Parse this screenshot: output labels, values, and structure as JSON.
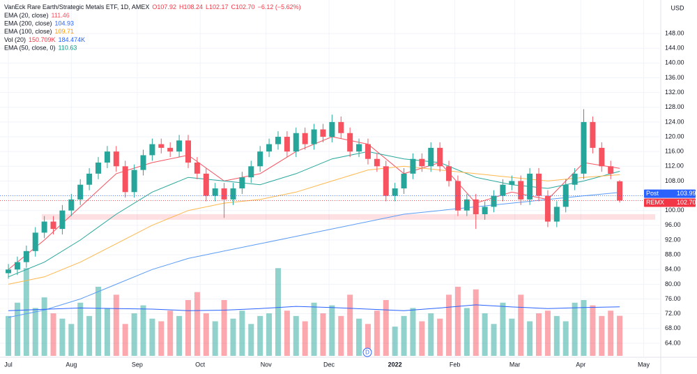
{
  "chart_data": {
    "type": "candlestick",
    "title": "VanEck Rare Earth/Strategic Metals ETF, 1D, AMEX",
    "ohlc_header": [
      {
        "text": "O107.92",
        "color": "#f23645"
      },
      {
        "text": "H108.24",
        "color": "#f23645"
      },
      {
        "text": "L102.17",
        "color": "#f23645"
      },
      {
        "text": "C102.70",
        "color": "#f23645"
      },
      {
        "text": "−6.12 (−5.62%)",
        "color": "#f23645"
      }
    ],
    "legend": [
      {
        "label": "EMA (20, close)",
        "values": [
          {
            "text": "111.46",
            "color": "#f7525f"
          }
        ]
      },
      {
        "label": "EMA (200, close)",
        "values": [
          {
            "text": "104.93",
            "color": "#2962ff"
          }
        ]
      },
      {
        "label": "EMA (100, close)",
        "values": [
          {
            "text": "109.71",
            "color": "#ff9800"
          }
        ]
      },
      {
        "label": "Vol (20)",
        "values": [
          {
            "text": "150.709K",
            "color": "#f23645"
          },
          {
            "text": "184.474K",
            "color": "#2962ff"
          }
        ]
      },
      {
        "label": "EMA (50, close, 0)",
        "values": [
          {
            "text": "110.63",
            "color": "#089981"
          }
        ]
      }
    ],
    "currency": "USD",
    "x": [
      0,
      3,
      6,
      9,
      12,
      15,
      18,
      21,
      24,
      27,
      30,
      33,
      36,
      39,
      42,
      45,
      48,
      51,
      54,
      57,
      60,
      63,
      66,
      69,
      72,
      75,
      78,
      81,
      84,
      87,
      90,
      93,
      96,
      99,
      102,
      105,
      108,
      111,
      114,
      117,
      120,
      123,
      126,
      129,
      132,
      135,
      138,
      141,
      144,
      147,
      150,
      153,
      156,
      159,
      162,
      165,
      168,
      171,
      174,
      177,
      180,
      183,
      186,
      189,
      192,
      195,
      198,
      201,
      204
    ],
    "open": [
      83,
      84,
      86,
      89,
      94,
      97,
      95,
      100,
      103,
      107,
      110,
      113,
      116,
      112,
      105,
      111,
      115,
      118,
      117,
      116,
      119,
      113,
      110,
      104,
      106,
      103,
      106,
      109,
      112,
      116,
      118,
      120,
      116,
      121,
      118,
      122,
      120,
      124,
      121,
      116,
      118,
      114,
      112,
      104,
      106,
      110,
      114,
      112,
      117,
      112,
      108,
      100,
      103,
      99,
      101,
      104,
      107,
      108,
      103,
      110,
      104,
      97,
      101,
      107,
      110,
      124,
      117,
      112,
      107.92
    ],
    "high": [
      85.5,
      87.5,
      90.5,
      95.5,
      98.5,
      98.5,
      101.5,
      104.5,
      108.5,
      111.5,
      114.5,
      117.5,
      117.5,
      113.5,
      112.5,
      116.5,
      119.5,
      119.5,
      118.5,
      120.5,
      120.5,
      114.5,
      111.5,
      107.5,
      107.5,
      107.5,
      110.5,
      113.5,
      117.5,
      119.5,
      121.5,
      121.5,
      122.5,
      122.5,
      123.5,
      123.5,
      126,
      125.5,
      122.5,
      119.5,
      119.5,
      115.5,
      113.5,
      107.5,
      111.5,
      115.5,
      115.5,
      118.5,
      118.5,
      113.5,
      109.5,
      104.5,
      104.5,
      102.5,
      105.5,
      108.5,
      109.5,
      109.5,
      111.5,
      111.5,
      105.5,
      102.5,
      108.5,
      111.5,
      127.5,
      125.5,
      118.5,
      113.5,
      108.24
    ],
    "low": [
      81.5,
      82.5,
      84.5,
      87.5,
      92.5,
      93.5,
      93.5,
      98.5,
      101.5,
      105.5,
      108.5,
      111.5,
      110.5,
      103.5,
      103.5,
      109.5,
      113.5,
      115.5,
      114.5,
      114.5,
      111.5,
      108.5,
      102.5,
      102.5,
      98,
      101.5,
      104.5,
      107.5,
      110.5,
      114.5,
      116.5,
      114.5,
      114.5,
      116.5,
      116.5,
      118.5,
      118.5,
      119.5,
      114.5,
      114.5,
      112.5,
      110.5,
      102.5,
      102.5,
      104.5,
      108.5,
      110.5,
      110.5,
      110.5,
      106.5,
      98.5,
      98.5,
      95,
      97.5,
      99.5,
      102.5,
      105.5,
      101.5,
      101.5,
      102.5,
      95.5,
      95.5,
      99.5,
      105.5,
      108.5,
      115.5,
      110.5,
      108.5,
      102.17
    ],
    "close": [
      84,
      86,
      89,
      94,
      97,
      95,
      100,
      103,
      107,
      110,
      113,
      116,
      112,
      105,
      111,
      115,
      118,
      117,
      116,
      119,
      113,
      110,
      104,
      106,
      103,
      106,
      109,
      112,
      116,
      118,
      120,
      116,
      121,
      118,
      122,
      120,
      124,
      121,
      116,
      118,
      114,
      112,
      104,
      106,
      110,
      114,
      112,
      117,
      112,
      108,
      100,
      103,
      99,
      101,
      104,
      107,
      108,
      103,
      110,
      104,
      97,
      101,
      107,
      110,
      124,
      117,
      112,
      110,
      102.7
    ],
    "volume": [
      150,
      200,
      330,
      180,
      220,
      160,
      140,
      120,
      200,
      150,
      260,
      180,
      230,
      120,
      160,
      190,
      140,
      130,
      170,
      150,
      210,
      240,
      160,
      130,
      210,
      140,
      170,
      120,
      150,
      160,
      330,
      170,
      150,
      130,
      200,
      160,
      190,
      150,
      230,
      140,
      120,
      170,
      210,
      110,
      150,
      180,
      130,
      160,
      140,
      230,
      260,
      180,
      250,
      160,
      120,
      200,
      140,
      230,
      130,
      160,
      170,
      150,
      130,
      200,
      210,
      190,
      150,
      170,
      150.709
    ],
    "vlim": [
      0,
      420
    ],
    "up_color": "#26a69a",
    "down_color": "#f7525f",
    "lines": [
      {
        "name": "EMA (20, close)",
        "color": "#f7525f",
        "axis": "y",
        "x": [
          0,
          12,
          24,
          36,
          48,
          60,
          72,
          84,
          96,
          108,
          120,
          132,
          144,
          156,
          168,
          180,
          192,
          204
        ],
        "values": [
          84,
          92,
          101,
          110,
          113,
          115,
          108,
          110,
          116,
          120,
          118,
          110,
          113,
          102,
          105,
          103,
          113,
          111.46
        ]
      },
      {
        "name": "EMA (50, close, 0)",
        "color": "#26a69a",
        "axis": "y",
        "x": [
          0,
          12,
          24,
          36,
          48,
          60,
          72,
          84,
          96,
          108,
          120,
          132,
          144,
          156,
          168,
          180,
          192,
          204
        ],
        "values": [
          82,
          86,
          92,
          99,
          105,
          109,
          108,
          107,
          110,
          114,
          116,
          114,
          113,
          109,
          107,
          106,
          108,
          110.63
        ]
      },
      {
        "name": "EMA (100, close)",
        "color": "#ffb74d",
        "axis": "y",
        "x": [
          0,
          12,
          24,
          36,
          48,
          60,
          72,
          84,
          96,
          108,
          120,
          132,
          144,
          156,
          168,
          180,
          192,
          204
        ],
        "values": [
          80,
          82,
          86,
          91,
          96,
          100,
          102,
          103,
          105,
          108,
          111,
          112,
          111,
          110,
          109,
          108,
          109,
          109.71
        ]
      },
      {
        "name": "EMA (200, close)",
        "color": "#5b9cf6",
        "axis": "y",
        "x": [
          0,
          12,
          24,
          36,
          48,
          60,
          72,
          84,
          96,
          108,
          120,
          132,
          144,
          156,
          168,
          180,
          192,
          204
        ],
        "values": [
          71,
          73,
          76,
          80,
          84,
          87,
          89,
          91,
          93,
          95,
          97,
          99,
          100,
          101,
          102,
          103,
          104,
          104.93
        ]
      },
      {
        "name": "Vol (20)",
        "color": "#2962ff",
        "axis": "volume",
        "x": [
          0,
          12,
          24,
          36,
          48,
          60,
          72,
          84,
          96,
          108,
          120,
          132,
          144,
          156,
          168,
          180,
          192,
          204
        ],
        "values": [
          170,
          175,
          180,
          178,
          176,
          170,
          172,
          178,
          186,
          182,
          176,
          170,
          180,
          192,
          184,
          178,
          182,
          184.474
        ]
      }
    ],
    "zone": [
      97.5,
      99
    ],
    "price_labels": [
      {
        "label": "Post",
        "value": 103.99,
        "value_label": "103.99",
        "color": "#2962ff"
      },
      {
        "label": "REMX",
        "value": 102.7,
        "value_label": "102.70",
        "color": "#f23645"
      }
    ],
    "ylim": [
      60.2,
      157.1
    ],
    "yticks": [
      {
        "value": 64,
        "label": "64.00"
      },
      {
        "value": 68,
        "label": "68.00"
      },
      {
        "value": 72,
        "label": "72.00"
      },
      {
        "value": 76,
        "label": "76.00"
      },
      {
        "value": 80,
        "label": "80.00"
      },
      {
        "value": 84,
        "label": "84.00"
      },
      {
        "value": 88,
        "label": "88.00"
      },
      {
        "value": 92,
        "label": "92.00"
      },
      {
        "value": 96,
        "label": "96.00"
      },
      {
        "value": 100,
        "label": "100.00"
      },
      {
        "value": 104,
        "label": "104.00"
      },
      {
        "value": 108,
        "label": "108.00"
      },
      {
        "value": 112,
        "label": "112.00"
      },
      {
        "value": 116,
        "label": "116.00"
      },
      {
        "value": 120,
        "label": "120.00"
      },
      {
        "value": 124,
        "label": "124.00"
      },
      {
        "value": 128,
        "label": "128.00"
      },
      {
        "value": 132,
        "label": "132.00"
      },
      {
        "value": 136,
        "label": "136.00"
      },
      {
        "value": 140,
        "label": "140.00"
      },
      {
        "value": 144,
        "label": "144.00"
      },
      {
        "value": 148,
        "label": "148.00"
      }
    ],
    "xlim": [
      -2.8,
      217.7
    ],
    "xticks": [
      {
        "value": 0,
        "label": "Jul"
      },
      {
        "value": 21,
        "label": "Aug"
      },
      {
        "value": 43,
        "label": "Sep"
      },
      {
        "value": 64,
        "label": "Oct"
      },
      {
        "value": 86,
        "label": "Nov"
      },
      {
        "value": 107,
        "label": "Dec"
      },
      {
        "value": 129,
        "label": "2022"
      },
      {
        "value": 149,
        "label": "Feb"
      },
      {
        "value": 169,
        "label": "Mar"
      },
      {
        "value": 191,
        "label": "Apr"
      },
      {
        "value": 212,
        "label": "May"
      }
    ],
    "grid": true
  }
}
